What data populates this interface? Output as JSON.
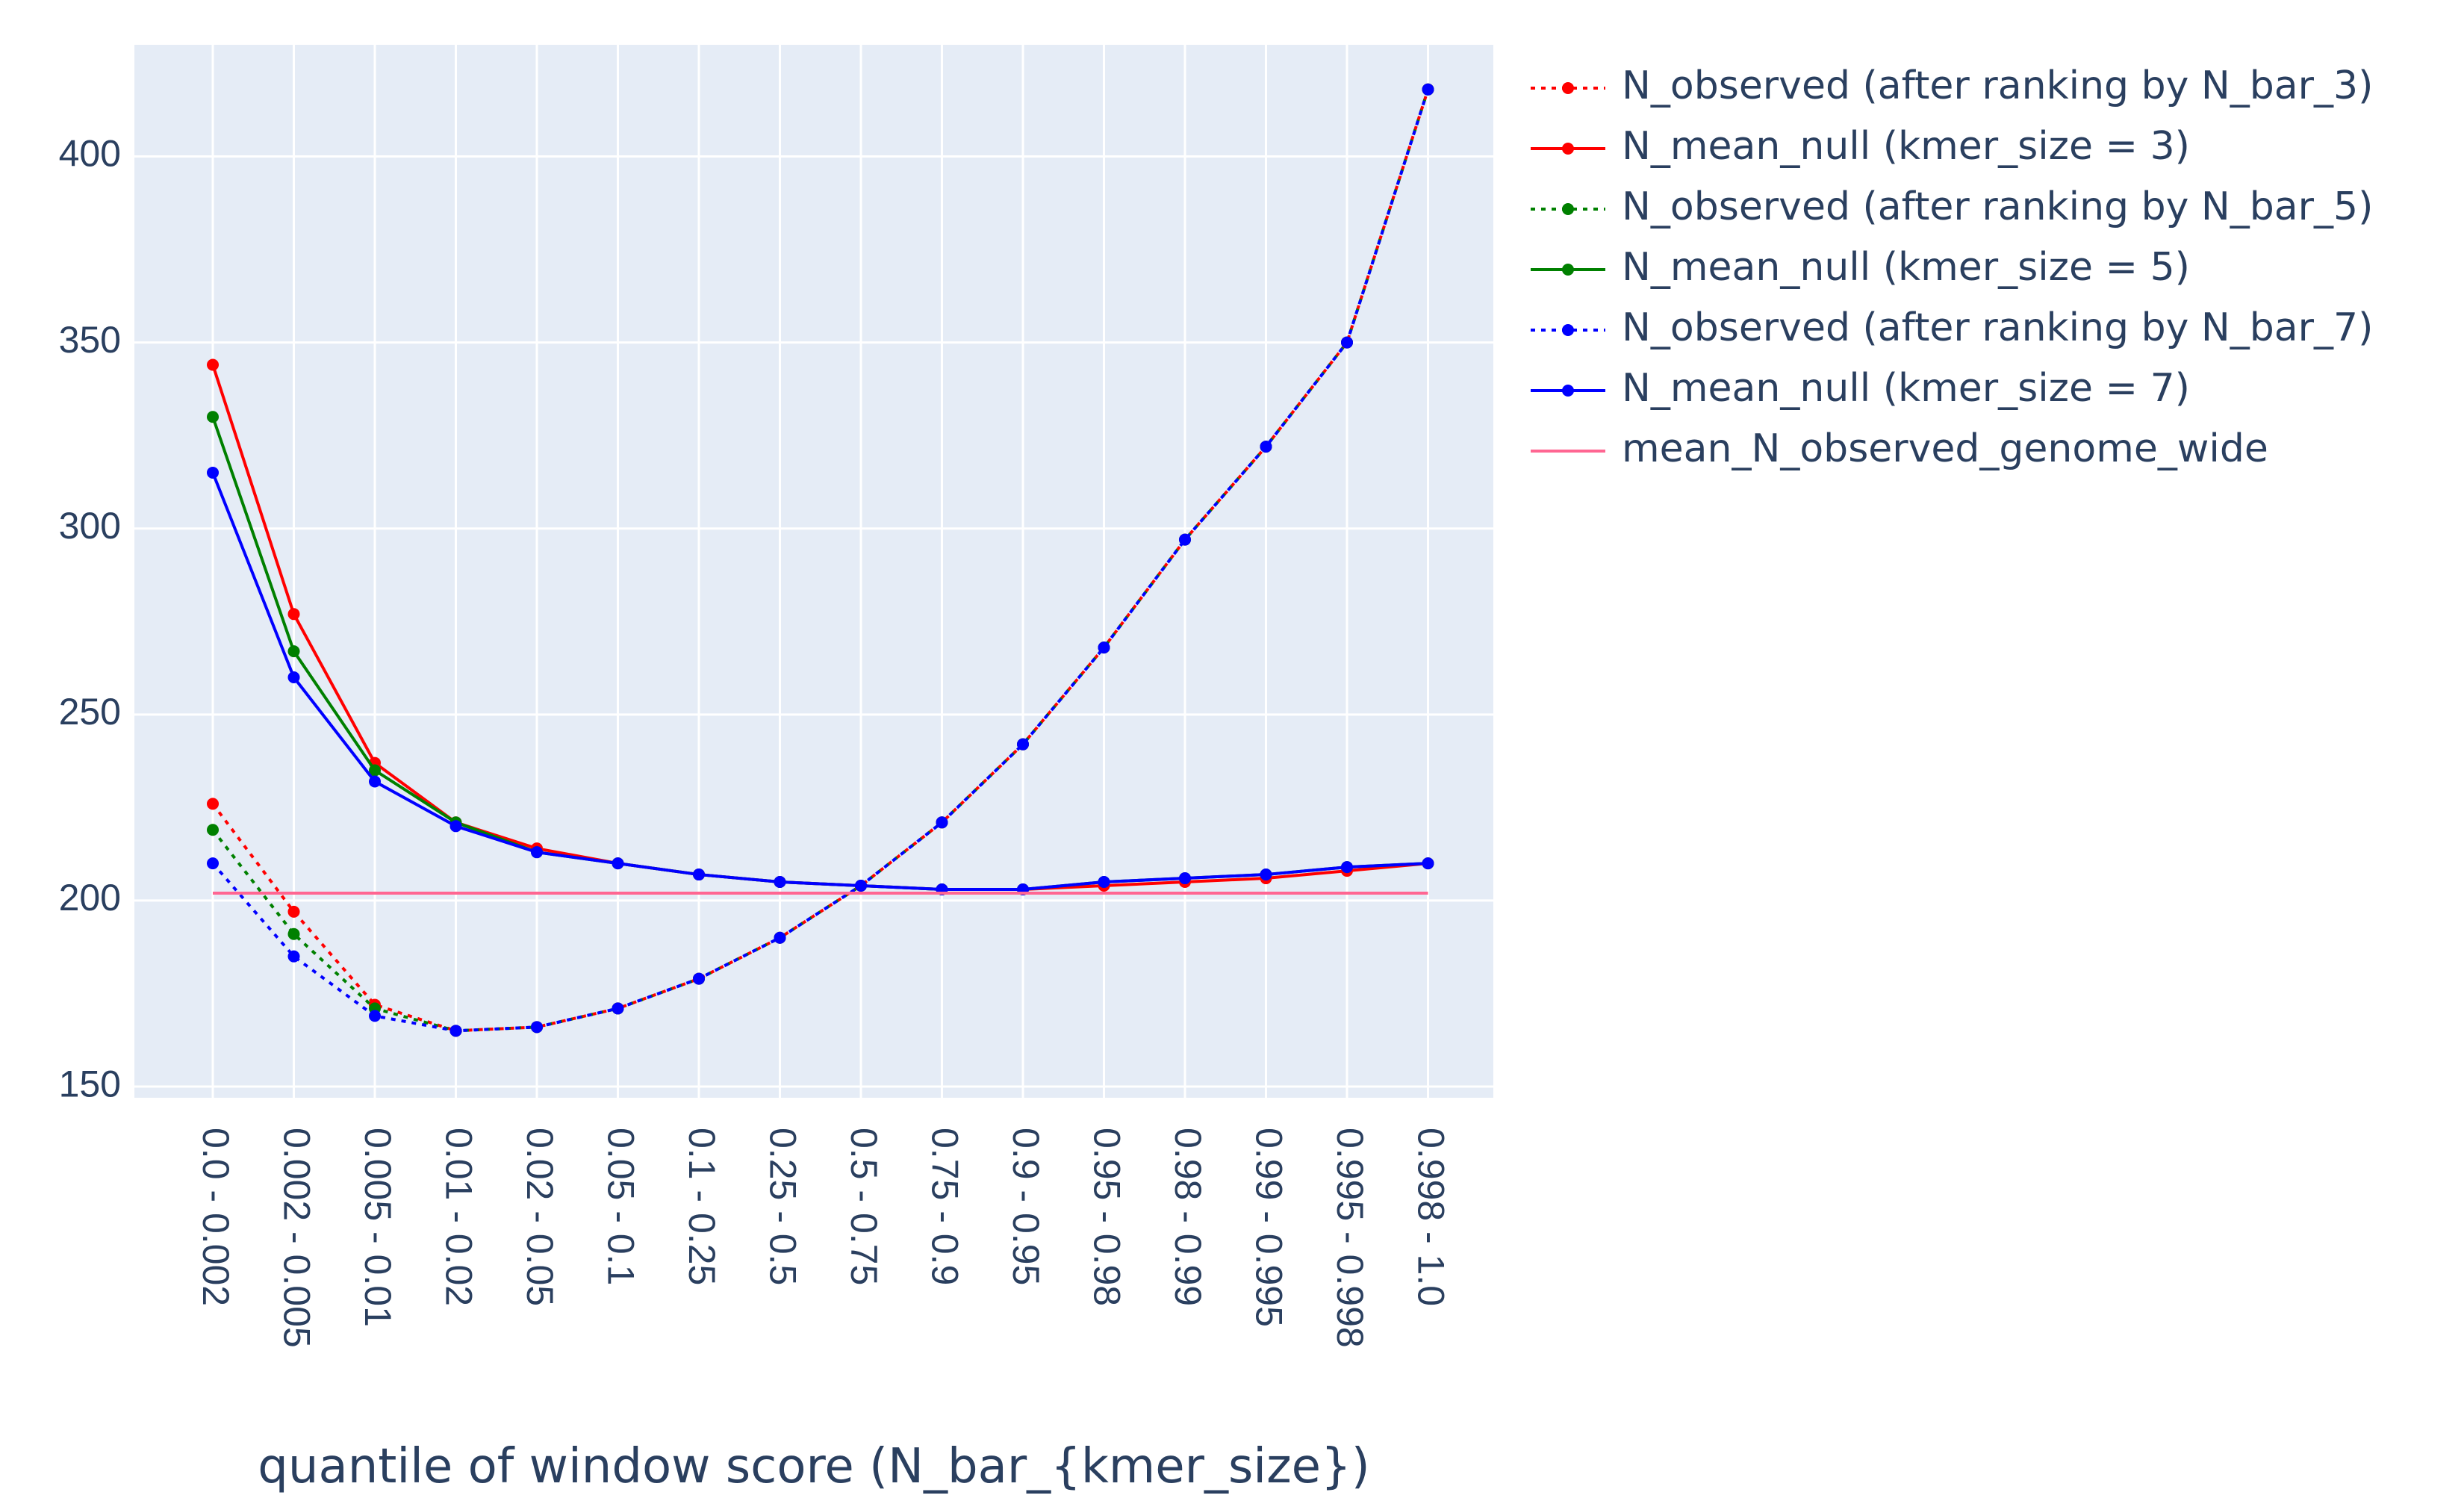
{
  "chart_data": {
    "type": "line",
    "title": "",
    "xlabel": "quantile of window score (N_bar_{kmer_size})",
    "ylabel": "",
    "ylim": [
      147,
      430
    ],
    "yticks": [
      150,
      200,
      250,
      300,
      350,
      400
    ],
    "ytick_labels": [
      "150",
      "200",
      "250",
      "300",
      "350",
      "400"
    ],
    "grid": true,
    "legend_position": "right",
    "colors": {
      "plot_bg": "#e5ecf6",
      "grid": "#ffffff",
      "text": "#2a3f5f"
    },
    "categories": [
      "0.0 - 0.002",
      "0.002 - 0.005",
      "0.005 - 0.01",
      "0.01 - 0.02",
      "0.02 - 0.05",
      "0.05 - 0.1",
      "0.1 - 0.25",
      "0.25 - 0.5",
      "0.5 - 0.75",
      "0.75 - 0.9",
      "0.9 - 0.95",
      "0.95 - 0.98",
      "0.98 - 0.99",
      "0.99 - 0.995",
      "0.995 - 0.998",
      "0.998 - 1.0"
    ],
    "series": [
      {
        "name": "N_observed (after ranking by N_bar_3)",
        "color": "#ff0000",
        "dash": "dot",
        "markers": true,
        "values": [
          226,
          197,
          172,
          165,
          166,
          171,
          179,
          190,
          204,
          221,
          242,
          268,
          297,
          322,
          350,
          418
        ]
      },
      {
        "name": "N_mean_null (kmer_size = 3)",
        "color": "#ff0000",
        "dash": "solid",
        "markers": true,
        "values": [
          344,
          277,
          237,
          221,
          214,
          210,
          207,
          205,
          204,
          203,
          203,
          204,
          205,
          206,
          208,
          210
        ]
      },
      {
        "name": "N_observed (after ranking by N_bar_5)",
        "color": "#008000",
        "dash": "dot",
        "markers": true,
        "values": [
          219,
          191,
          171,
          165,
          166,
          171,
          179,
          190,
          204,
          221,
          242,
          268,
          297,
          322,
          350,
          418
        ]
      },
      {
        "name": "N_mean_null (kmer_size = 5)",
        "color": "#008000",
        "dash": "solid",
        "markers": true,
        "values": [
          330,
          267,
          235,
          221,
          213,
          210,
          207,
          205,
          204,
          203,
          203,
          205,
          206,
          207,
          209,
          210
        ]
      },
      {
        "name": "N_observed (after ranking by N_bar_7)",
        "color": "#0000ff",
        "dash": "dot",
        "markers": true,
        "values": [
          210,
          185,
          169,
          165,
          166,
          171,
          179,
          190,
          204,
          221,
          242,
          268,
          297,
          322,
          350,
          418
        ]
      },
      {
        "name": "N_mean_null (kmer_size = 7)",
        "color": "#0000ff",
        "dash": "solid",
        "markers": true,
        "values": [
          315,
          260,
          232,
          220,
          213,
          210,
          207,
          205,
          204,
          203,
          203,
          205,
          206,
          207,
          209,
          210
        ]
      },
      {
        "name": "mean_N_observed_genome_wide",
        "color": "#ff6692",
        "dash": "solid",
        "markers": false,
        "values": [
          202,
          202,
          202,
          202,
          202,
          202,
          202,
          202,
          202,
          202,
          202,
          202,
          202,
          202,
          202,
          202
        ]
      }
    ]
  }
}
